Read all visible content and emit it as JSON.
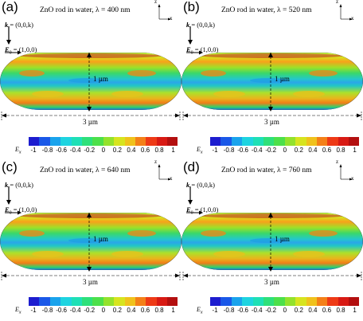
{
  "figure": {
    "panels": [
      {
        "label": "(a)",
        "title": "ZnO rod in water, λ = 400 nm"
      },
      {
        "label": "(b)",
        "title": "ZnO rod in water, λ = 520 nm"
      },
      {
        "label": "(c)",
        "title": "ZnO rod in water, λ = 640 nm"
      },
      {
        "label": "(d)",
        "title": "ZnO rod in water, λ = 760 nm"
      }
    ],
    "k_vector": {
      "symbol": "k",
      "value": " = (0,0,k)"
    },
    "e_vector": {
      "symbol": "E",
      "subscript": "0",
      "value": " = (1,0,0)"
    },
    "axis_z": "z",
    "axis_x": "x",
    "height_label": "1 µm",
    "length_label": "3 µm",
    "colorbar": {
      "label": "E",
      "label_sub": "x",
      "ticks": [
        "-1",
        "-0.8",
        "-0.6",
        "-0.4",
        "-0.2",
        "0",
        "0.2",
        "0.4",
        "0.6",
        "0.8",
        "1"
      ],
      "colors": [
        "#1d1dcf",
        "#1a58e8",
        "#1aa3ec",
        "#1ed4e0",
        "#1ee0b6",
        "#2ee07a",
        "#4ce04a",
        "#93e22c",
        "#d7e41f",
        "#f0c21c",
        "#f48018",
        "#ee3a16",
        "#d81a14",
        "#b30f0f"
      ]
    }
  }
}
